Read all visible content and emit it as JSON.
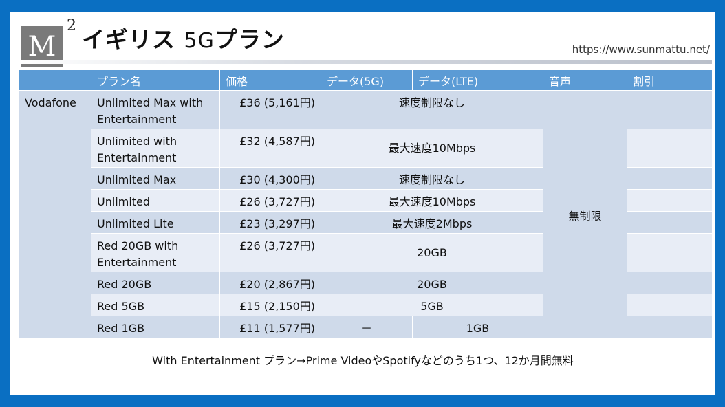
{
  "header": {
    "logo_letter": "M",
    "logo_superscript": "2",
    "title_prefix": "イギリス",
    "title_number": "5G",
    "title_suffix": "プラン",
    "url": "https://www.sunmattu.net/"
  },
  "table": {
    "columns": [
      "",
      "プラン名",
      "価格",
      "データ(5G)",
      "データ(LTE)",
      "音声",
      "割引"
    ],
    "provider": "Vodafone",
    "voice": "無制限",
    "rows": [
      {
        "plan": "Unlimited Max with Entertainment",
        "price": "£36 (5,161円)",
        "data": "速度制限なし"
      },
      {
        "plan": "Unlimited with Entertainment",
        "price": "£32 (4,587円)",
        "data": "最大速度10Mbps"
      },
      {
        "plan": "Unlimited Max",
        "price": "£30 (4,300円)",
        "data": "速度制限なし"
      },
      {
        "plan": "Unlimited",
        "price": "£26 (3,727円)",
        "data": "最大速度10Mbps"
      },
      {
        "plan": "Unlimited Lite",
        "price": "£23 (3,297円)",
        "data": "最大速度2Mbps"
      },
      {
        "plan": "Red 20GB with Entertainment",
        "price": "£26 (3,727円)",
        "data": "20GB"
      },
      {
        "plan": "Red 20GB",
        "price": "£20 (2,867円)",
        "data": "20GB"
      },
      {
        "plan": "Red 5GB",
        "price": "£15 (2,150円)",
        "data": "5GB"
      },
      {
        "plan": "Red 1GB",
        "price": "£11 (1,577円)",
        "data_5g": "－",
        "data_lte": "1GB"
      }
    ]
  },
  "footer": "With Entertainment プラン→Prime VideoやSpotifyなどのうち1つ、12か月間無料"
}
